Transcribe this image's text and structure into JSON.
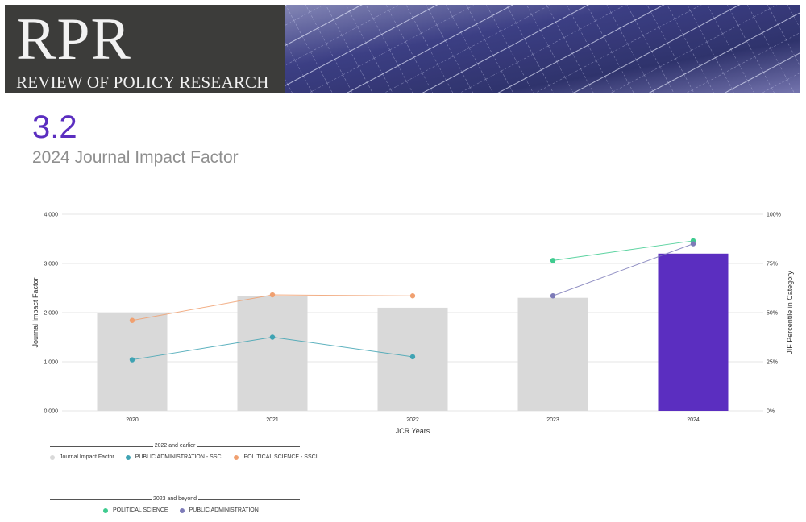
{
  "banner": {
    "logo_text": "RPR",
    "journal_name": "REVIEW OF POLICY RESEARCH"
  },
  "impact": {
    "value": "3.2",
    "label": "2024 Journal Impact Factor"
  },
  "colors": {
    "bar": "#d9d9d9",
    "bar_highlight": "#5b2ec0",
    "public_admin_ssci": "#3fa3b3",
    "political_science_ssci": "#f0a070",
    "political_science": "#3ecb8f",
    "public_administration": "#7d7bb8"
  },
  "legend": {
    "group1_title": "2022 and earlier",
    "group1_items": [
      "Journal Impact Factor",
      "PUBLIC ADMINISTRATION - SSCI",
      "POLITICAL SCIENCE - SSCI"
    ],
    "group2_title": "2023 and beyond",
    "group2_items": [
      "POLITICAL SCIENCE",
      "PUBLIC ADMINISTRATION"
    ]
  },
  "chart_data": {
    "type": "bar",
    "categories": [
      "2020",
      "2021",
      "2022",
      "2023",
      "2024"
    ],
    "xlabel": "JCR Years",
    "ylabel": "Journal Impact Factor",
    "y2label": "JIF Percentile in Category",
    "ylim": [
      0,
      4
    ],
    "yticks": [
      "0.000",
      "1.000",
      "2.000",
      "3.000",
      "4.000"
    ],
    "y2lim": [
      0,
      100
    ],
    "y2ticks": [
      "0%",
      "25%",
      "50%",
      "75%",
      "100%"
    ],
    "grid": true,
    "highlight_category": "2024",
    "series": [
      {
        "name": "Journal Impact Factor",
        "kind": "bar",
        "axis": "left",
        "values": [
          2.0,
          2.33,
          2.1,
          2.3,
          3.2
        ]
      },
      {
        "name": "PUBLIC ADMINISTRATION - SSCI",
        "kind": "line",
        "axis": "right",
        "values": [
          26,
          37.5,
          27.5,
          null,
          null
        ]
      },
      {
        "name": "POLITICAL SCIENCE - SSCI",
        "kind": "line",
        "axis": "right",
        "values": [
          46,
          59,
          58.5,
          null,
          null
        ]
      },
      {
        "name": "POLITICAL SCIENCE",
        "kind": "line",
        "axis": "right",
        "values": [
          null,
          null,
          null,
          76.5,
          86.5
        ]
      },
      {
        "name": "PUBLIC ADMINISTRATION",
        "kind": "line",
        "axis": "right",
        "values": [
          null,
          null,
          null,
          58.5,
          85
        ]
      }
    ]
  }
}
